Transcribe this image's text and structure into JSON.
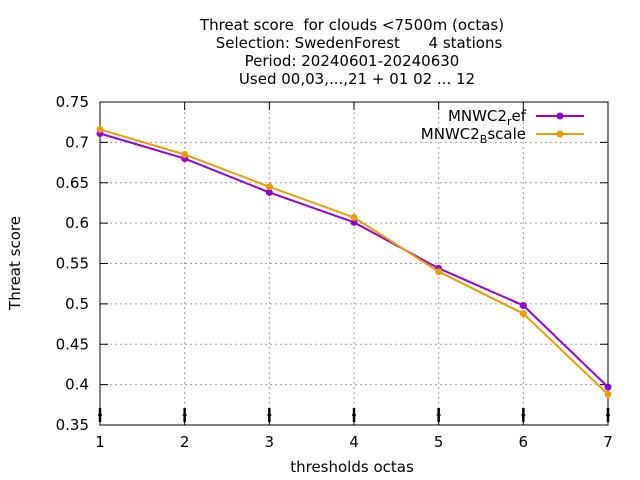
{
  "chart_data": {
    "type": "line",
    "title_lines": [
      "Threat score  for clouds <7500m (octas)",
      "Selection: SwedenForest      4 stations",
      "Period: 20240601-20240630",
      "Used 00,03,...,21 + 01 02 ... 12"
    ],
    "xlabel": "thresholds octas",
    "ylabel": "Threat score",
    "x": [
      1,
      2,
      3,
      4,
      5,
      6,
      7
    ],
    "xlim": [
      1,
      7
    ],
    "ylim": [
      0.35,
      0.75
    ],
    "xticks": [
      "1",
      "2",
      "3",
      "4",
      "5",
      "6",
      "7"
    ],
    "yticks": [
      "0.35",
      "0.4",
      "0.45",
      "0.5",
      "0.55",
      "0.6",
      "0.65",
      "0.7",
      "0.75"
    ],
    "grid": true,
    "legend_position": "top-right",
    "series": [
      {
        "name": "MNWC2_ref",
        "legend_main": "MNWC2",
        "legend_sub": "r",
        "legend_rest": "ef",
        "color": "#9400d3",
        "values": [
          0.711,
          0.68,
          0.638,
          0.601,
          0.544,
          0.498,
          0.397
        ]
      },
      {
        "name": "MNWC2_Bscale",
        "legend_main": "MNWC2",
        "legend_sub": "B",
        "legend_rest": "scale",
        "color": "#e69f00",
        "values": [
          0.716,
          0.685,
          0.645,
          0.607,
          0.54,
          0.488,
          0.388
        ]
      }
    ]
  }
}
